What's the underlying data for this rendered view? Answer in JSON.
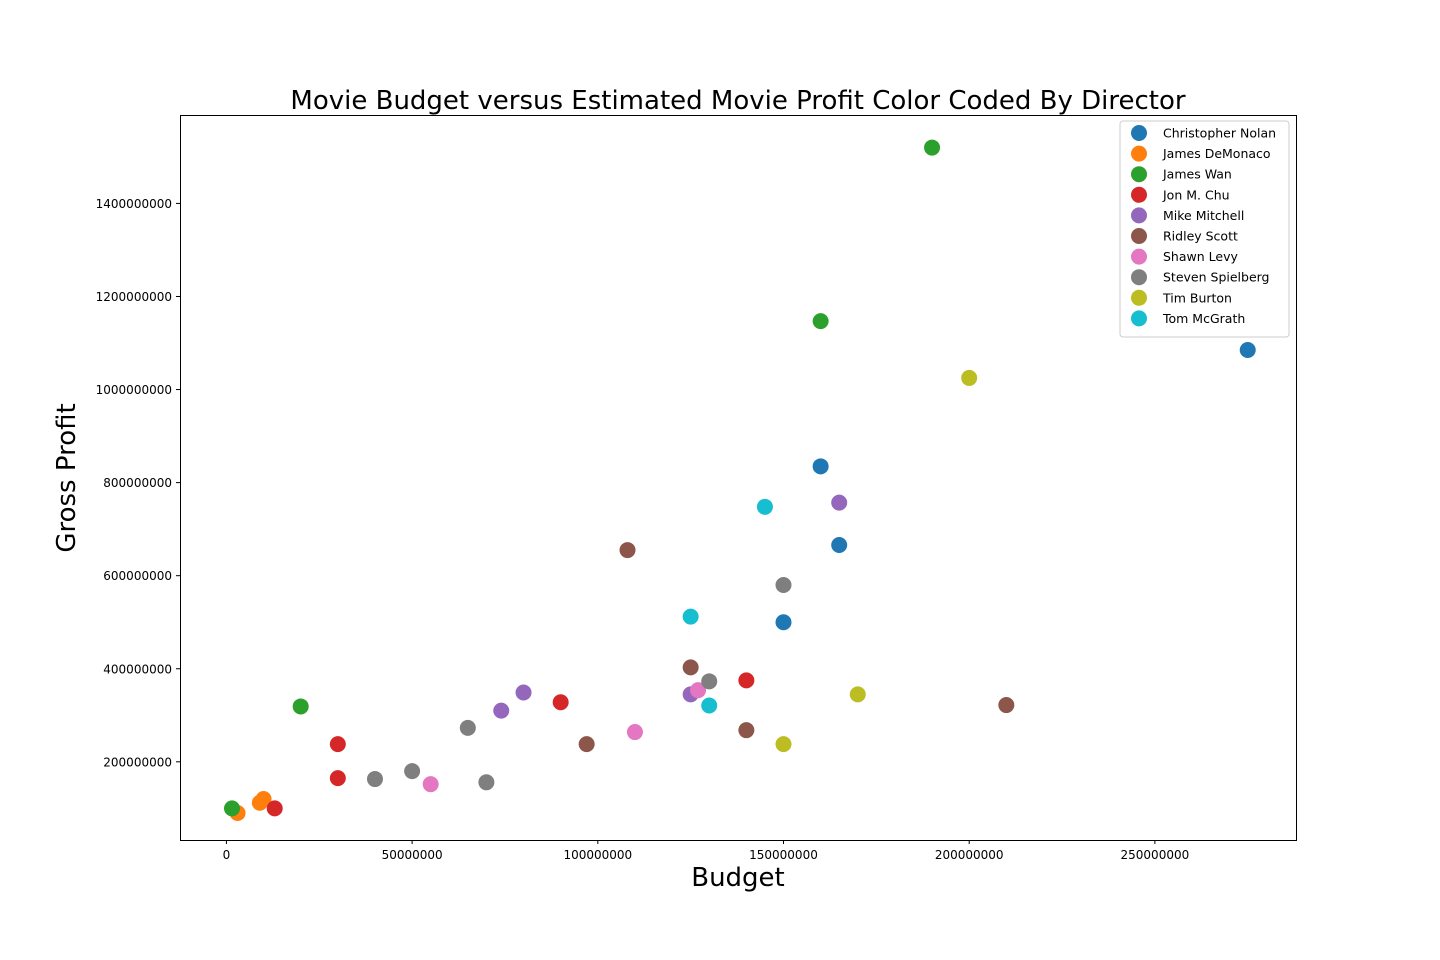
{
  "chart_data": {
    "type": "scatter",
    "title": "Movie Budget versus Estimated Movie Profit Color Coded By Director",
    "xlabel": "Budget",
    "ylabel": "Gross Profit",
    "xlim": [
      -12500000,
      288000000
    ],
    "ylim": [
      32000000,
      1590000000
    ],
    "xticks": [
      0,
      50000000,
      100000000,
      150000000,
      200000000,
      250000000
    ],
    "xtick_labels": [
      "0",
      "50000000",
      "100000000",
      "150000000",
      "200000000",
      "250000000"
    ],
    "yticks": [
      200000000,
      400000000,
      600000000,
      800000000,
      1000000000,
      1200000000,
      1400000000
    ],
    "ytick_labels": [
      "200000000",
      "400000000",
      "600000000",
      "800000000",
      "1000000000",
      "1200000000",
      "1400000000"
    ],
    "grid": false,
    "legend_position": "top-right",
    "series": [
      {
        "name": "Christopher Nolan",
        "color": "#1f77b4",
        "points": [
          [
            275000000,
            1085000000
          ],
          [
            160000000,
            835000000
          ],
          [
            165000000,
            666000000
          ],
          [
            150000000,
            500000000
          ]
        ]
      },
      {
        "name": "James DeMonaco",
        "color": "#ff7f0e",
        "points": [
          [
            3000000,
            90000000
          ],
          [
            9000000,
            112000000
          ],
          [
            10000000,
            120000000
          ]
        ]
      },
      {
        "name": "James Wan",
        "color": "#2ca02c",
        "points": [
          [
            190000000,
            1520000000
          ],
          [
            160000000,
            1147000000
          ],
          [
            20000000,
            319000000
          ],
          [
            1500000,
            100000000
          ]
        ]
      },
      {
        "name": "Jon M. Chu",
        "color": "#d62728",
        "points": [
          [
            140000000,
            375000000
          ],
          [
            90000000,
            328000000
          ],
          [
            30000000,
            238000000
          ],
          [
            30000000,
            165000000
          ],
          [
            13000000,
            100000000
          ]
        ]
      },
      {
        "name": "Mike Mitchell",
        "color": "#9467bd",
        "points": [
          [
            165000000,
            757000000
          ],
          [
            80000000,
            349000000
          ],
          [
            125000000,
            345000000
          ],
          [
            74000000,
            310000000
          ]
        ]
      },
      {
        "name": "Ridley Scott",
        "color": "#8c564b",
        "points": [
          [
            108000000,
            655000000
          ],
          [
            125000000,
            403000000
          ],
          [
            210000000,
            322000000
          ],
          [
            140000000,
            268000000
          ],
          [
            97000000,
            238000000
          ]
        ]
      },
      {
        "name": "Shawn Levy",
        "color": "#e377c2",
        "points": [
          [
            127000000,
            354000000
          ],
          [
            110000000,
            264000000
          ],
          [
            55000000,
            152000000
          ]
        ]
      },
      {
        "name": "Steven Spielberg",
        "color": "#7f7f7f",
        "points": [
          [
            150000000,
            580000000
          ],
          [
            130000000,
            373000000
          ],
          [
            65000000,
            273000000
          ],
          [
            50000000,
            180000000
          ],
          [
            40000000,
            163000000
          ],
          [
            70000000,
            156000000
          ]
        ]
      },
      {
        "name": "Tim Burton",
        "color": "#bcbd22",
        "points": [
          [
            200000000,
            1025000000
          ],
          [
            170000000,
            345000000
          ],
          [
            150000000,
            238000000
          ]
        ]
      },
      {
        "name": "Tom McGrath",
        "color": "#17becf",
        "points": [
          [
            145000000,
            748000000
          ],
          [
            125000000,
            512000000
          ],
          [
            130000000,
            321000000
          ]
        ]
      }
    ]
  }
}
